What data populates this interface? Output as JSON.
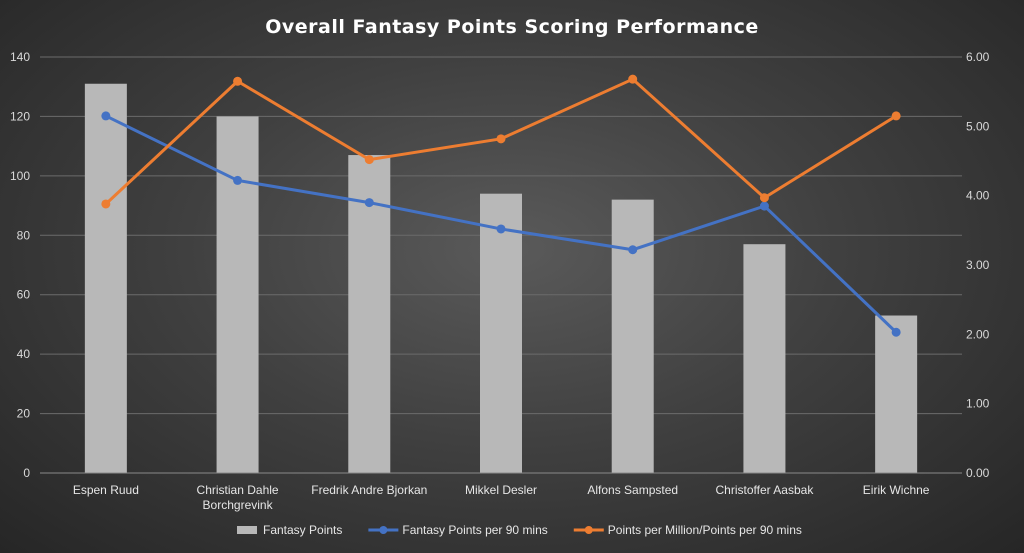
{
  "chart_data": {
    "type": "bar",
    "title": "Overall Fantasy Points Scoring Performance",
    "categories": [
      [
        "Espen Ruud"
      ],
      [
        "Christian Dahle",
        "Borchgrevink"
      ],
      [
        "Fredrik Andre Bjorkan"
      ],
      [
        "Mikkel Desler"
      ],
      [
        "Alfons Sampsted"
      ],
      [
        "Christoffer Aasbak"
      ],
      [
        "Eirik Wichne"
      ]
    ],
    "left_axis": {
      "ticks": [
        "0",
        "20",
        "40",
        "60",
        "80",
        "100",
        "120",
        "140"
      ],
      "ylim": [
        0,
        140
      ]
    },
    "right_axis": {
      "ticks": [
        "0.00",
        "1.00",
        "2.00",
        "3.00",
        "4.00",
        "5.00",
        "6.00"
      ],
      "ylim": [
        0,
        6
      ]
    },
    "grid": true,
    "legend_position": "bottom",
    "series": [
      {
        "name": "Fantasy Points",
        "type": "bar",
        "axis": "left",
        "color": "#b8b8b8",
        "values": [
          131,
          120,
          107,
          94,
          92,
          77,
          53
        ]
      },
      {
        "name": "Fantasy Points per 90 mins",
        "type": "line",
        "axis": "right",
        "color": "#4472c4",
        "values": [
          5.15,
          4.22,
          3.9,
          3.52,
          3.22,
          3.85,
          2.03
        ]
      },
      {
        "name": "Points per Million/Points per 90 mins",
        "type": "line",
        "axis": "right",
        "color": "#ed7d31",
        "values": [
          3.88,
          5.65,
          4.52,
          4.82,
          5.68,
          3.97,
          5.15
        ]
      }
    ]
  }
}
